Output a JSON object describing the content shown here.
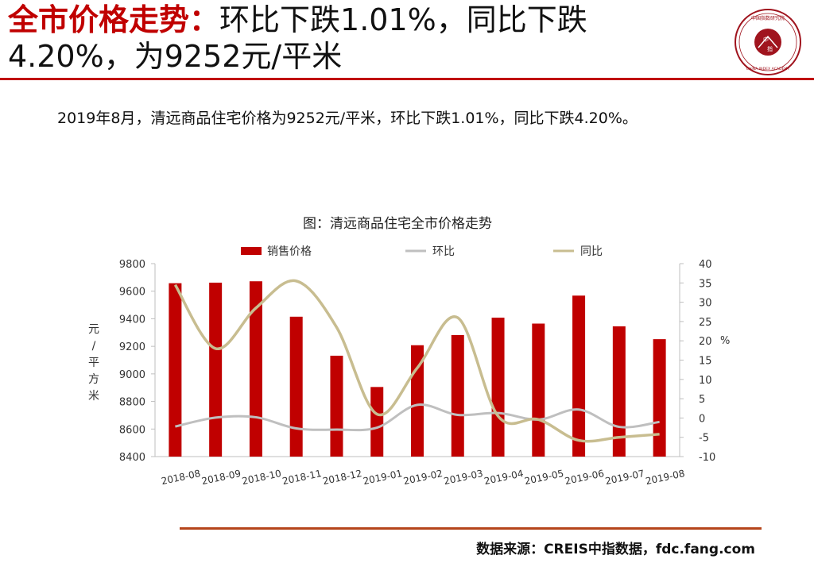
{
  "header": {
    "title_bold": "全市价格走势：",
    "title_rest_line1": "环比下跌1.01%，同比下跌",
    "title_line2": "4.20%，为9252元/平米"
  },
  "seal": {
    "outer_text": "中国指数研究院",
    "inner_text_1": "中",
    "inner_text_2": "指",
    "english_text": "CHINA INDEX ACADEMY"
  },
  "summary": "2019年8月，清远商品住宅价格为9252元/平米，环比下跌1.01%，同比下跌4.20%。",
  "source": "数据来源：CREIS中指数据，fdc.fang.com",
  "colors": {
    "bar": "#c00000",
    "mom": "#bfbfbf",
    "yoy": "#c8bd90",
    "accent": "#c00000"
  },
  "chart_data": {
    "type": "bar",
    "title": "图：清远商品住宅全市价格走势",
    "categories": [
      "2018-08",
      "2018-09",
      "2018-10",
      "2018-11",
      "2018-12",
      "2019-01",
      "2019-02",
      "2019-03",
      "2019-04",
      "2019-05",
      "2019-06",
      "2019-07",
      "2019-08"
    ],
    "series": [
      {
        "name": "销售价格",
        "kind": "bar",
        "axis": "left",
        "values": [
          9658,
          9662,
          9672,
          9415,
          9132,
          8905,
          9208,
          9282,
          9408,
          9365,
          9568,
          9345,
          9252
        ]
      },
      {
        "name": "环比",
        "kind": "line",
        "axis": "right",
        "values": [
          -2.2,
          0.1,
          0.2,
          -2.7,
          -3.0,
          -2.5,
          3.4,
          0.8,
          1.3,
          -0.4,
          2.2,
          -2.3,
          -1.01
        ]
      },
      {
        "name": "同比",
        "kind": "line",
        "axis": "right",
        "values": [
          34.5,
          18.0,
          28.5,
          35.5,
          23.5,
          1.0,
          13.0,
          26.0,
          0.5,
          -0.4,
          -5.8,
          -5.0,
          -4.2
        ]
      }
    ],
    "y_left": {
      "label": "元/平方米",
      "ylim": [
        8400,
        9800
      ],
      "ticks": [
        "9800",
        "9600",
        "9400",
        "9200",
        "9000",
        "8800",
        "8600",
        "8400"
      ]
    },
    "y_right": {
      "label": "%",
      "ylim": [
        -10,
        40
      ],
      "ticks": [
        "40",
        "35",
        "30",
        "25",
        "20",
        "15",
        "10",
        "5",
        "0",
        "-5",
        "-10"
      ]
    },
    "legend": "top",
    "grid": false
  }
}
